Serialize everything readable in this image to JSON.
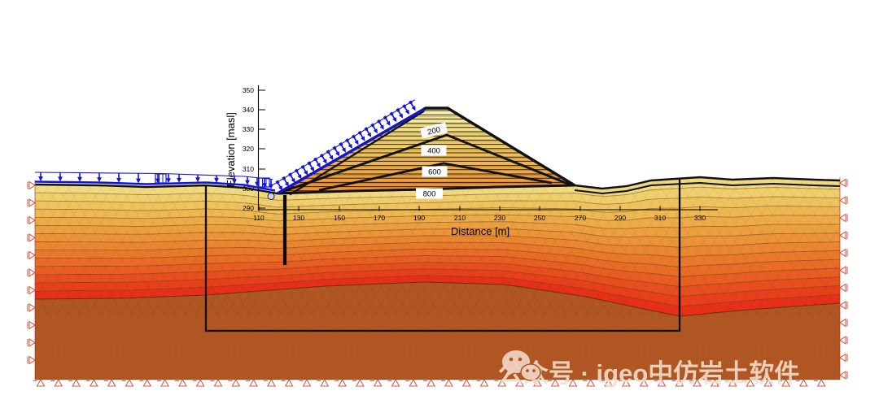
{
  "watermark": {
    "icon": "wechat-icon",
    "text": "公众号 · igeo中仿岩土软件"
  },
  "chart_data": {
    "type": "heatmap",
    "variant": "filled-contour FEM cross-section of an embankment dam on a layered foundation",
    "title": "",
    "xlabel": "Distance [m]",
    "ylabel": "Elevation [masl]",
    "x_ticks": [
      110,
      130,
      150,
      170,
      190,
      210,
      230,
      250,
      270,
      290,
      310,
      330
    ],
    "y_ticks": [
      350,
      340,
      330,
      320,
      310,
      300,
      290
    ],
    "grid": false,
    "legend": false,
    "isoline_labels": [
      {
        "value": 200,
        "x_m": 197,
        "elevation_masl": 330
      },
      {
        "value": 400,
        "x_m": 197,
        "elevation_masl": 319
      },
      {
        "value": 600,
        "x_m": 198,
        "elevation_masl": 309
      },
      {
        "value": 800,
        "x_m": 195,
        "elevation_masl": 298
      }
    ],
    "embankment": {
      "upstream_toe": {
        "x_m": 119,
        "elevation_masl": 298
      },
      "crest": {
        "x_m_from": 190,
        "x_m_to": 202,
        "elevation_masl": 341
      },
      "downstream_toe": {
        "x_m": 267,
        "elevation_masl": 301
      },
      "internal_zone_boundaries": 2,
      "hatch": "horizontal construction layers"
    },
    "ground_surface_elevation_masl": 302,
    "bottom_layer_top_elevation_masl": 245,
    "refined_zone_rectangle": {
      "x_m_from": 84,
      "x_m_to": 320,
      "base_elevation_masl": 227
    },
    "cutoff_wall": {
      "x_m": 113,
      "top_elevation_masl": 297,
      "bottom_elevation_masl": 262
    },
    "loads": {
      "left_ground_surface": "vertical distributed load arrows",
      "upstream_slope": "distributed load arrows normal to slope"
    },
    "supports": {
      "left_edge": "horizontal roller markers",
      "right_edge": "horizontal roller markers",
      "bottom_edge": "pin support markers"
    },
    "colors": {
      "background": "#ffffff",
      "load_arrows": "#1414d8",
      "support_markers": "#c8503a",
      "bottom_layer": "#b05622",
      "outline_black": "#111111",
      "isoline_label_box": "#ffffff",
      "dam_bands": [
        "#f6efae",
        "#f4e795",
        "#f3de82",
        "#f1d572",
        "#f0cb64",
        "#efc059",
        "#eeb550",
        "#edaa49",
        "#ec9e43",
        "#ec923d"
      ],
      "foundation_bands": [
        "#f1da80",
        "#f0cf6d",
        "#efc45e",
        "#eeb852",
        "#edac48",
        "#eca03f",
        "#ec9438",
        "#eb8731",
        "#ea7a2b",
        "#ea6c26",
        "#e95e22",
        "#e84f1e",
        "#e8401b",
        "#e73018"
      ]
    }
  }
}
